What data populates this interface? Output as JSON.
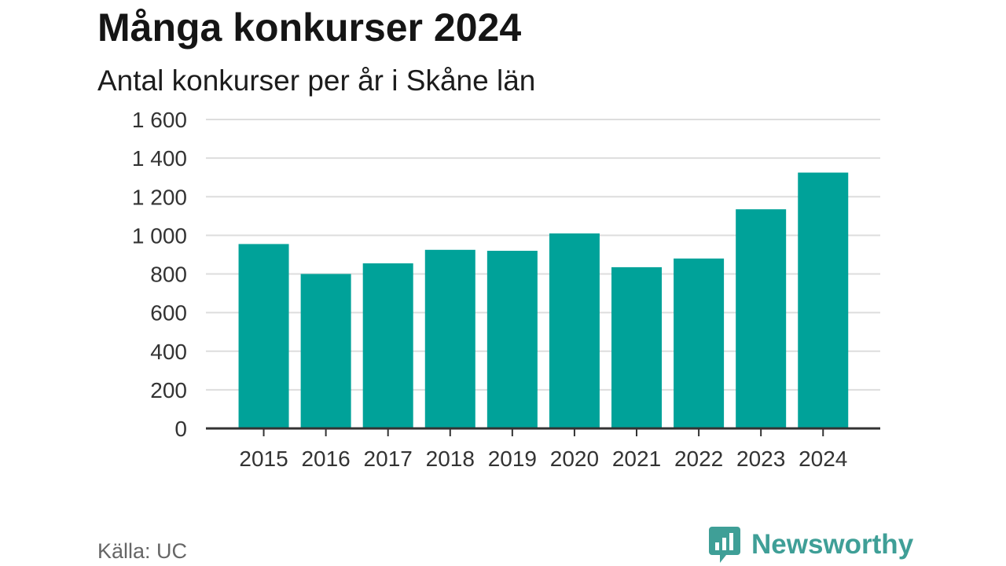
{
  "header": {
    "title": "Många konkurser 2024",
    "subtitle": "Antal konkurser per år i Skåne län"
  },
  "footer": {
    "source": "Källa: UC",
    "brand": "Newsworthy"
  },
  "colors": {
    "bar": "#00a299",
    "grid": "#dddddd",
    "axis": "#333333",
    "brand": "#3f9f97"
  },
  "chart_data": {
    "type": "bar",
    "categories": [
      "2015",
      "2016",
      "2017",
      "2018",
      "2019",
      "2020",
      "2021",
      "2022",
      "2023",
      "2024"
    ],
    "values": [
      955,
      800,
      855,
      925,
      920,
      1010,
      835,
      880,
      1135,
      1325
    ],
    "title": "Många konkurser 2024",
    "subtitle": "Antal konkurser per år i Skåne län",
    "xlabel": "",
    "ylabel": "",
    "ylim": [
      0,
      1600
    ],
    "yticks": [
      0,
      200,
      400,
      600,
      800,
      1000,
      1200,
      1400,
      1600
    ],
    "ytick_labels": [
      "0",
      "200",
      "400",
      "600",
      "800",
      "1 000",
      "1 200",
      "1 400",
      "1 600"
    ],
    "grid": true,
    "legend": "none"
  }
}
